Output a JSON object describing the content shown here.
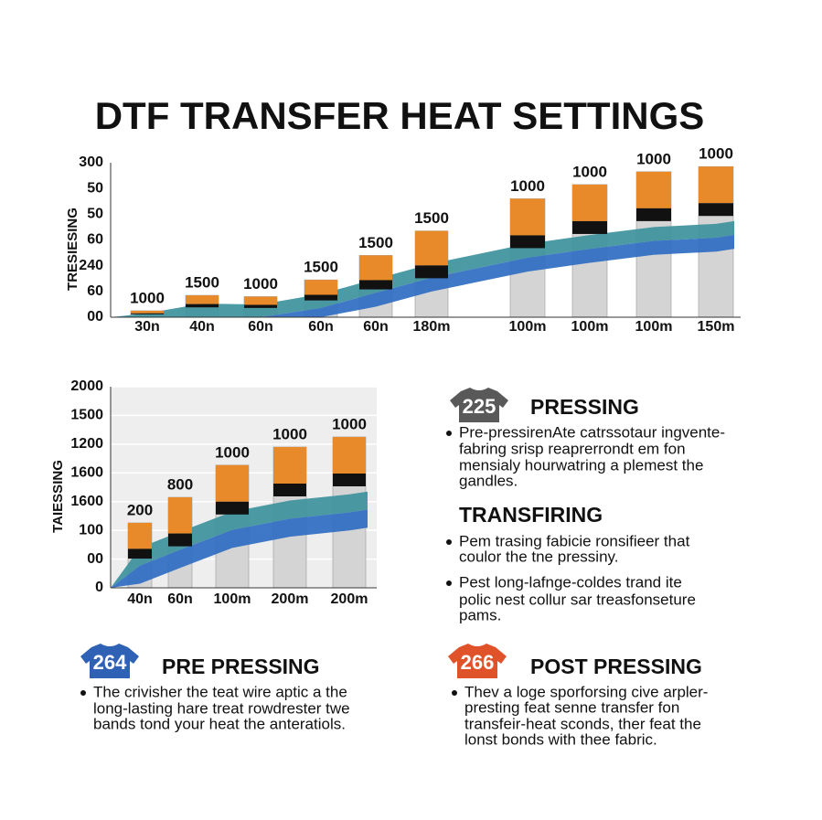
{
  "title": "DTF TRANSFER HEAT SETTINGS",
  "chart_data": [
    {
      "type": "bar",
      "y_label": "TRESIESING",
      "categories": [
        "30n",
        "40n",
        "60n",
        "60n",
        "60n",
        "180m",
        "100m",
        "100m",
        "100m",
        "150m"
      ],
      "values": [
        0.25,
        0.85,
        0.8,
        1.45,
        2.4,
        3.35,
        4.6,
        5.15,
        5.65,
        5.85
      ],
      "bar_labels": [
        "1000",
        "1500",
        "1000",
        "1500",
        "1500",
        "1500",
        "1000",
        "1000",
        "1000",
        "1000"
      ],
      "ylim": [
        0,
        6
      ],
      "yticks": [
        {
          "value": 0,
          "label": "00"
        },
        {
          "value": 1,
          "label": "60"
        },
        {
          "value": 2,
          "label": "240"
        },
        {
          "value": 3,
          "label": "60"
        },
        {
          "value": 4,
          "label": "50"
        },
        {
          "value": 5,
          "label": "50"
        },
        {
          "value": 6,
          "label": "300"
        }
      ],
      "colors": {
        "bar": "#d4d4d4",
        "cap": "#e8892a",
        "band": "#3d939c",
        "band2": "#2f6cc2"
      }
    },
    {
      "type": "bar",
      "y_label": "TAIESSING",
      "categories": [
        "40n",
        "60n",
        "100m",
        "200m",
        "200m"
      ],
      "values": [
        2.26,
        3.15,
        4.27,
        4.9,
        5.25
      ],
      "bar_labels": [
        "200",
        "800",
        "1000",
        "1000",
        "1000"
      ],
      "ylim": [
        0,
        7
      ],
      "yticks": [
        0,
        {
          "value": 1,
          "label": "00"
        },
        {
          "value": 2,
          "label": "100"
        },
        {
          "value": 3,
          "label": "1600"
        },
        {
          "value": 4,
          "label": "1600"
        },
        {
          "value": 5,
          "label": "1200"
        },
        {
          "value": 6,
          "label": "1500"
        },
        {
          "value": 7,
          "label": "2000"
        }
      ],
      "grid": true,
      "colors": {
        "bar": "#d4d4d4",
        "cap": "#e8892a",
        "band": "#3d939c",
        "band2": "#2f6cc2"
      }
    }
  ],
  "sections": [
    {
      "badge": "225",
      "heading": "PRESSING",
      "bullets": [
        [
          "Pre-pressirenAte catrssotaur ingvente-",
          "fabring srisp reaprerrondt em fon",
          "mensialy hourwatring a plemest the",
          "gandles."
        ]
      ]
    },
    {
      "heading": "TRANSFIRING",
      "bullets": [
        [
          "Pem trasing fabicie ronsifieer that",
          "coulor the tne pressiny."
        ],
        [
          "Pest long-lafnge-coldes trand ite",
          "polic nest collur sar treasfonseture",
          "pams."
        ]
      ]
    },
    {
      "badge": "264",
      "heading": "PRE PRESSING",
      "bullets": [
        [
          "The crivisher the teat wire aptic a the",
          "long-lasting hare treat rowdrester twe",
          "bands tond your heat the anteratiols."
        ]
      ]
    },
    {
      "badge": "266",
      "heading": "POST PRESSING",
      "bullets": [
        [
          "Thev a loge sporforsing cive arpler-",
          "presting feat senne transfer fon",
          "transfeir-heat sconds, ther feat the",
          "lonst bonds with thee fabric."
        ]
      ]
    }
  ]
}
